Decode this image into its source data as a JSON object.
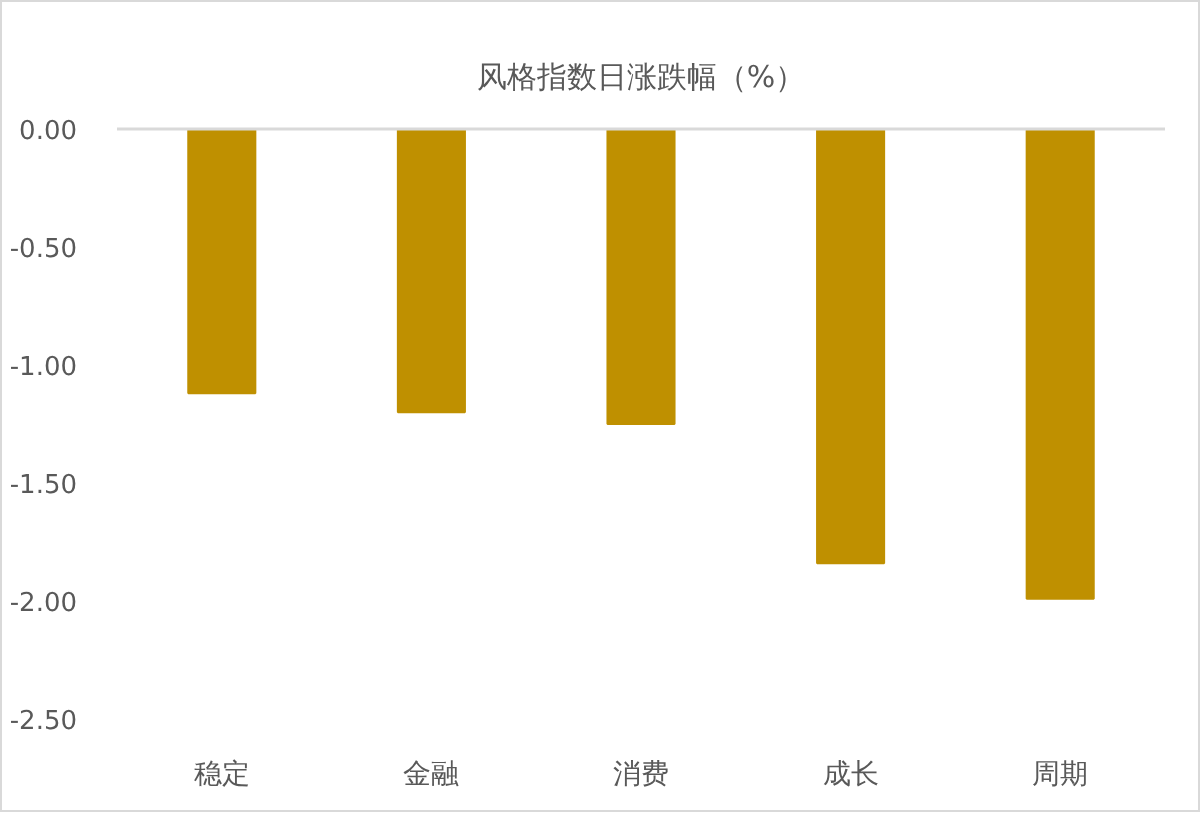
{
  "chart_data": {
    "type": "bar",
    "title": "风格指数日涨跌幅（%）",
    "categories": [
      "稳定",
      "金融",
      "消费",
      "成长",
      "周期"
    ],
    "values": [
      -1.12,
      -1.2,
      -1.25,
      -1.84,
      -1.99
    ],
    "color": "#bf9000",
    "ylim": [
      -2.5,
      0
    ],
    "yticks": [
      {
        "value": -2.5,
        "label": "-2.50"
      },
      {
        "value": -2,
        "label": "-2.00"
      },
      {
        "value": -1.5,
        "label": "-1.50"
      },
      {
        "value": -1,
        "label": "-1.00"
      },
      {
        "value": -0.5,
        "label": "-0.50"
      },
      {
        "value": 0,
        "label": "0.00"
      }
    ],
    "grid": false
  }
}
